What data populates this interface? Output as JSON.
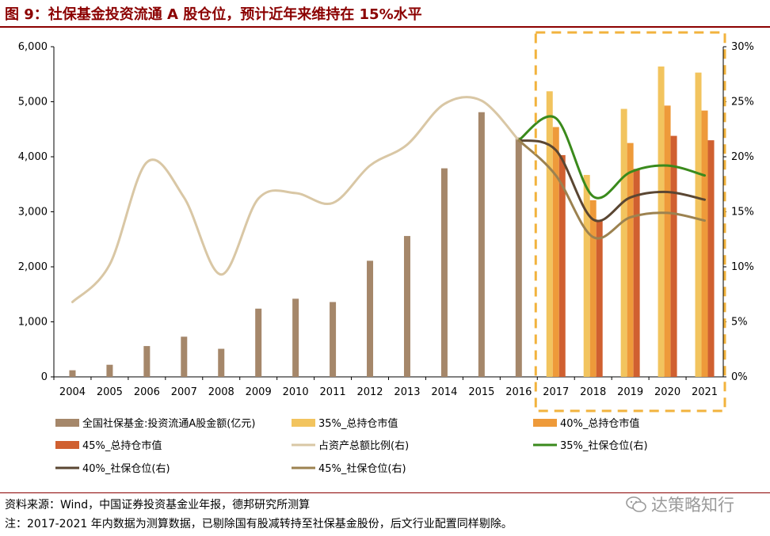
{
  "title": "图 9：社保基金投资流通 A 股仓位，预计近年来维持在 15%水平",
  "source": "资料来源：Wind，中国证券投资基金业年报，德邦研究所测算",
  "note": "注：2017-2021 年内数据为测算数据，已剔除国有股减转持至社保基金股份，后文行业配置同样剔除。",
  "watermark": "达策略知行",
  "chart_data": {
    "type": "bar",
    "categories": [
      "2004",
      "2005",
      "2006",
      "2007",
      "2008",
      "2009",
      "2010",
      "2011",
      "2012",
      "2013",
      "2014",
      "2015",
      "2016",
      "2017",
      "2018",
      "2019",
      "2020",
      "2021"
    ],
    "y_left": {
      "lim": [
        0,
        6000
      ],
      "ticks": [
        "0",
        "1,000",
        "2,000",
        "3,000",
        "4,000",
        "5,000",
        "6,000"
      ]
    },
    "y_right": {
      "lim": [
        0,
        30
      ],
      "ticks": [
        "0%",
        "5%",
        "10%",
        "15%",
        "20%",
        "25%",
        "30%"
      ]
    },
    "bar_series": [
      {
        "name": "全国社保基金:投资流通A股金额(亿元)",
        "color": "#A5876A",
        "values": [
          120,
          220,
          560,
          730,
          510,
          1240,
          1420,
          1360,
          2110,
          2560,
          3790,
          4810,
          4350,
          null,
          null,
          null,
          null,
          null
        ]
      },
      {
        "name": "35%_总持仓市值",
        "color": "#F2C45E",
        "values": [
          null,
          null,
          null,
          null,
          null,
          null,
          null,
          null,
          null,
          null,
          null,
          null,
          null,
          5190,
          3670,
          4870,
          5640,
          5530
        ]
      },
      {
        "name": "40%_总持仓市值",
        "color": "#EE9A3A",
        "values": [
          null,
          null,
          null,
          null,
          null,
          null,
          null,
          null,
          null,
          null,
          null,
          null,
          null,
          4540,
          3210,
          4250,
          4930,
          4840
        ]
      },
      {
        "name": "45%_总持仓市值",
        "color": "#D06030",
        "values": [
          null,
          null,
          null,
          null,
          null,
          null,
          null,
          null,
          null,
          null,
          null,
          null,
          null,
          4030,
          2850,
          3780,
          4380,
          4300
        ]
      }
    ],
    "line_series": [
      {
        "name": "占资产总额比例(右)",
        "color": "#D9C7A5",
        "values": [
          6.8,
          10.2,
          19.5,
          16.3,
          9.3,
          16.2,
          16.7,
          15.8,
          19.2,
          21.1,
          24.8,
          25.1,
          21.5,
          null,
          null,
          null,
          null,
          null
        ]
      },
      {
        "name": "35%_社保仓位(右)",
        "color": "#3A8A1C",
        "values": [
          null,
          null,
          null,
          null,
          null,
          null,
          null,
          null,
          null,
          null,
          null,
          null,
          21.5,
          23.5,
          16.4,
          18.6,
          19.2,
          18.3
        ]
      },
      {
        "name": "40%_社保仓位(右)",
        "color": "#5A4632",
        "values": [
          null,
          null,
          null,
          null,
          null,
          null,
          null,
          null,
          null,
          null,
          null,
          null,
          21.5,
          20.6,
          14.3,
          16.3,
          16.8,
          16.1
        ]
      },
      {
        "name": "45%_社保仓位(右)",
        "color": "#9C8250",
        "values": [
          null,
          null,
          null,
          null,
          null,
          null,
          null,
          null,
          null,
          null,
          null,
          null,
          21.5,
          18.3,
          12.7,
          14.5,
          14.9,
          14.2
        ]
      }
    ],
    "legend_order": [
      0,
      1,
      2,
      3,
      "l0",
      "l1",
      "l2",
      "l3"
    ],
    "highlight_box": {
      "from": "2017",
      "to": "2021",
      "color": "#F2B33D"
    }
  }
}
